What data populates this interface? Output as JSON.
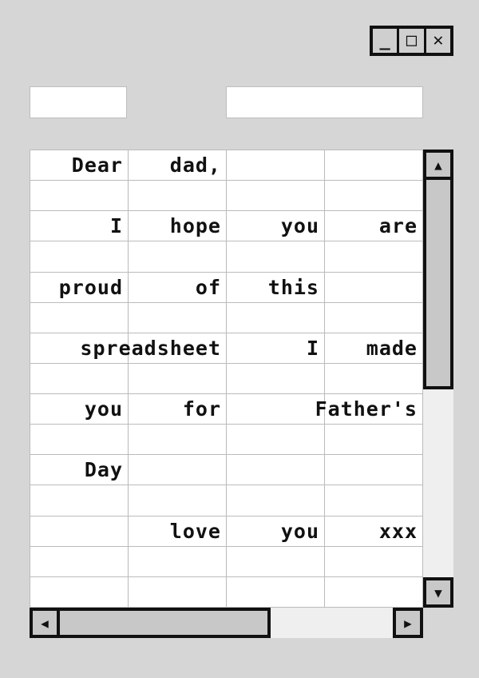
{
  "window_controls": {
    "minimize": "_",
    "maximize": "□",
    "close": "✕"
  },
  "cell_name_box": {
    "value": ""
  },
  "formula_bar": {
    "value": ""
  },
  "sheet": {
    "columns": 4,
    "rows": [
      [
        "Dear",
        "dad,",
        "",
        ""
      ],
      [
        "",
        "",
        "",
        ""
      ],
      [
        "I",
        "hope",
        "you",
        "are"
      ],
      [
        "",
        "",
        "",
        ""
      ],
      [
        "proud",
        "of",
        "this",
        ""
      ],
      [
        "",
        "",
        "",
        ""
      ],
      [
        "",
        "spreadsheet",
        "I",
        "made"
      ],
      [
        "",
        "",
        "",
        ""
      ],
      [
        "you",
        "for",
        "",
        "Father's"
      ],
      [
        "",
        "",
        "",
        ""
      ],
      [
        "Day",
        "",
        "",
        ""
      ],
      [
        "",
        "",
        "",
        ""
      ],
      [
        "",
        "love",
        "you",
        "xxx"
      ],
      [
        "",
        "",
        "",
        ""
      ],
      [
        "",
        "",
        "",
        ""
      ]
    ]
  },
  "scrollbars": {
    "vertical": {
      "up_icon": "▲",
      "down_icon": "▼",
      "position": 0
    },
    "horizontal": {
      "left_icon": "◀",
      "right_icon": "▶",
      "position": 0
    }
  }
}
